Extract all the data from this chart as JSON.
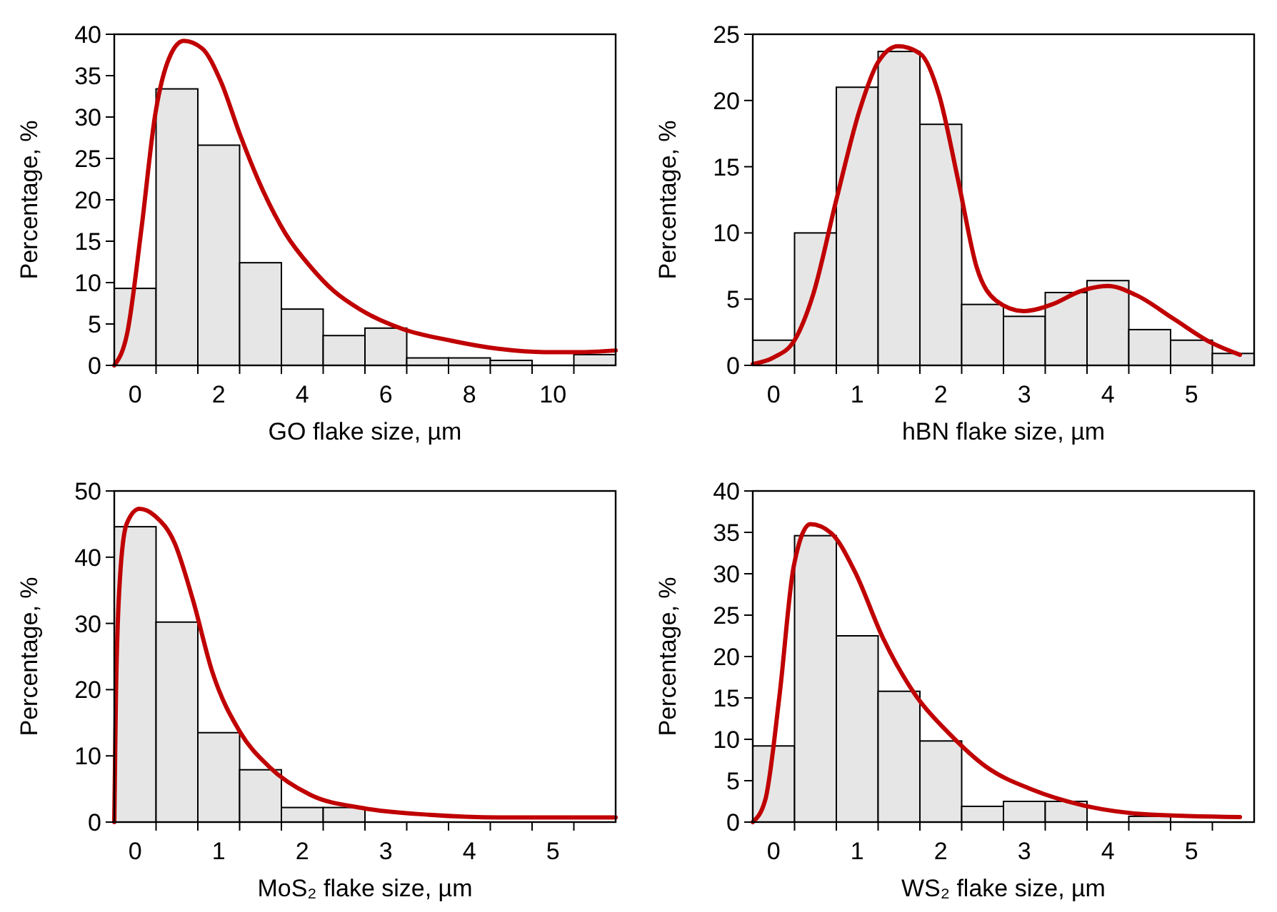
{
  "chart_data": [
    {
      "type": "histogram",
      "xlabel": "GO flake size, µm",
      "ylabel": "Percentage, %",
      "color": "#e6e6e6",
      "bins": [
        -0.5,
        0.5,
        1.5,
        2.5,
        3.5,
        4.5,
        5.5,
        6.5,
        7.5,
        8.5,
        9.5,
        10.5,
        11.5
      ],
      "values": [
        9.3,
        33.4,
        26.6,
        12.4,
        6.8,
        3.6,
        4.5,
        0.9,
        0.9,
        0.6,
        0,
        1.3
      ],
      "series": [
        {
          "type": "line",
          "color": "#c00000",
          "x": [
            -0.5,
            -0.19,
            0.15,
            0.48,
            0.82,
            1.16,
            1.6,
            2.05,
            2.5,
            3.06,
            3.6,
            4.2,
            4.75,
            5.4,
            6.4,
            7.55,
            8.7,
            9.8,
            10.6,
            11.5
          ],
          "values": [
            0,
            3.9,
            16.5,
            30.3,
            37.2,
            39.2,
            38.3,
            34.3,
            28,
            21.1,
            15.9,
            11.9,
            9,
            6.7,
            4.4,
            3,
            2,
            1.6,
            1.6,
            1.8
          ]
        }
      ],
      "xlim": [
        -0.5,
        11.5
      ],
      "ylim": [
        0,
        40
      ],
      "xticks": [
        0,
        2,
        4,
        6,
        8,
        10,
        {
          "value": 0.5,
          "label": null
        },
        {
          "value": 1.5,
          "label": null
        },
        {
          "value": 2.5,
          "label": null
        },
        {
          "value": 3.5,
          "label": null
        },
        {
          "value": 4.5,
          "label": null
        },
        {
          "value": 5.5,
          "label": null
        },
        {
          "value": 6.5,
          "label": null
        },
        {
          "value": 7.5,
          "label": null
        },
        {
          "value": 8.5,
          "label": null
        },
        {
          "value": 9.5,
          "label": null
        },
        {
          "value": 10.5,
          "label": null
        }
      ],
      "yticks": [
        0,
        5,
        10,
        15,
        20,
        25,
        30,
        35,
        40
      ],
      "line_style": "solid",
      "marker": "none"
    },
    {
      "type": "histogram",
      "xlabel": "hBN flake size, µm",
      "ylabel": "Percentage, %",
      "color": "#e6e6e6",
      "bins": [
        -0.25,
        0.25,
        0.75,
        1.25,
        1.75,
        2.25,
        2.75,
        3.25,
        3.75,
        4.25,
        4.75,
        5.25,
        5.75
      ],
      "values": [
        1.9,
        10,
        21,
        23.7,
        18.2,
        4.6,
        3.7,
        5.5,
        6.4,
        2.7,
        1.9,
        0.9
      ],
      "series": [
        {
          "type": "line",
          "color": "#c00000",
          "x": [
            -0.25,
            0,
            0.25,
            0.47,
            0.75,
            1.03,
            1.25,
            1.49,
            1.76,
            1.98,
            2.21,
            2.43,
            2.66,
            2.99,
            3.33,
            3.67,
            4,
            4.34,
            4.79,
            5.24,
            5.58
          ],
          "values": [
            0.1,
            0.6,
            1.9,
            5.3,
            12.5,
            19.3,
            22.9,
            24.1,
            23.5,
            20.4,
            13.9,
            7.4,
            4.9,
            4.1,
            4.6,
            5.6,
            6,
            5.3,
            3.5,
            1.7,
            0.8
          ]
        }
      ],
      "xlim": [
        -0.25,
        5.75
      ],
      "ylim": [
        0,
        25
      ],
      "xticks": [
        0,
        1,
        2,
        3,
        4,
        5,
        {
          "value": 0.25,
          "label": null
        },
        {
          "value": 0.75,
          "label": null
        },
        {
          "value": 1.25,
          "label": null
        },
        {
          "value": 1.75,
          "label": null
        },
        {
          "value": 2.25,
          "label": null
        },
        {
          "value": 2.75,
          "label": null
        },
        {
          "value": 3.25,
          "label": null
        },
        {
          "value": 3.75,
          "label": null
        },
        {
          "value": 4.25,
          "label": null
        },
        {
          "value": 4.75,
          "label": null
        },
        {
          "value": 5.25,
          "label": null
        }
      ],
      "yticks": [
        0,
        5,
        10,
        15,
        20,
        25
      ],
      "line_style": "solid",
      "marker": "none"
    },
    {
      "type": "histogram",
      "xlabel": "MoS₂ flake size, µm",
      "ylabel": "Percentage, %",
      "color": "#e6e6e6",
      "bins": [
        -0.25,
        0.25,
        0.75,
        1.25,
        1.75,
        2.25,
        2.75,
        3.25,
        3.75,
        4.25,
        4.75,
        5.25,
        5.75
      ],
      "values": [
        44.6,
        30.2,
        13.5,
        7.9,
        2.2,
        2.2,
        0,
        0,
        0,
        0,
        0,
        0
      ],
      "series": [
        {
          "type": "line",
          "color": "#c00000",
          "x": [
            -0.25,
            -0.23,
            -0.18,
            -0.1,
            0.05,
            0.24,
            0.47,
            0.69,
            0.92,
            1.26,
            1.6,
            2.1,
            2.73,
            3.52,
            4.36,
            5.75
          ],
          "values": [
            0,
            19.2,
            37.2,
            45.1,
            47.3,
            46.2,
            42.2,
            33.6,
            22.8,
            13.5,
            8.4,
            4.1,
            2.1,
            1.1,
            0.7,
            0.7
          ]
        }
      ],
      "xlim": [
        -0.25,
        5.75
      ],
      "ylim": [
        0,
        50
      ],
      "xticks": [
        0,
        1,
        2,
        3,
        4,
        5,
        {
          "value": 0.25,
          "label": null
        },
        {
          "value": 0.75,
          "label": null
        },
        {
          "value": 1.25,
          "label": null
        },
        {
          "value": 1.75,
          "label": null
        },
        {
          "value": 2.25,
          "label": null
        },
        {
          "value": 2.75,
          "label": null
        },
        {
          "value": 3.25,
          "label": null
        },
        {
          "value": 3.75,
          "label": null
        },
        {
          "value": 4.25,
          "label": null
        },
        {
          "value": 4.75,
          "label": null
        },
        {
          "value": 5.25,
          "label": null
        }
      ],
      "yticks": [
        0,
        10,
        20,
        30,
        40,
        50
      ],
      "line_style": "solid",
      "marker": "none"
    },
    {
      "type": "histogram",
      "xlabel": "WS₂ flake size, µm",
      "ylabel": "Percentage, %",
      "color": "#e6e6e6",
      "bins": [
        -0.25,
        0.25,
        0.75,
        1.25,
        1.75,
        2.25,
        2.75,
        3.25,
        3.75,
        4.25,
        4.75,
        5.25,
        5.75
      ],
      "values": [
        9.2,
        34.6,
        22.5,
        15.8,
        9.8,
        1.9,
        2.5,
        2.5,
        0,
        0.7,
        0,
        0
      ],
      "series": [
        {
          "type": "line",
          "color": "#c00000",
          "x": [
            -0.25,
            -0.1,
            0.07,
            0.24,
            0.44,
            0.69,
            0.97,
            1.31,
            1.7,
            2.1,
            2.54,
            3.1,
            3.67,
            4.51,
            5.58
          ],
          "values": [
            0,
            2.7,
            15.3,
            30.9,
            36,
            34.9,
            30.3,
            22.2,
            15.3,
            10.7,
            6.7,
            3.9,
            2.1,
            0.9,
            0.6
          ]
        }
      ],
      "xlim": [
        -0.25,
        5.75
      ],
      "ylim": [
        0,
        40
      ],
      "xticks": [
        0,
        1,
        2,
        3,
        4,
        5,
        {
          "value": 0.25,
          "label": null
        },
        {
          "value": 0.75,
          "label": null
        },
        {
          "value": 1.25,
          "label": null
        },
        {
          "value": 1.75,
          "label": null
        },
        {
          "value": 2.25,
          "label": null
        },
        {
          "value": 2.75,
          "label": null
        },
        {
          "value": 3.25,
          "label": null
        },
        {
          "value": 3.75,
          "label": null
        },
        {
          "value": 4.25,
          "label": null
        },
        {
          "value": 4.75,
          "label": null
        },
        {
          "value": 5.25,
          "label": null
        }
      ],
      "yticks": [
        0,
        5,
        10,
        15,
        20,
        25,
        30,
        35,
        40
      ],
      "line_style": "solid",
      "marker": "none"
    }
  ]
}
